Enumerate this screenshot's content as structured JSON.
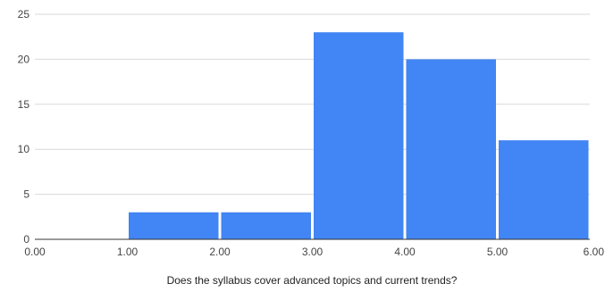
{
  "chart_data": {
    "type": "bar",
    "subtype": "histogram",
    "title": "",
    "xlabel": "Does the syllabus cover advanced topics and current trends?",
    "ylabel": "",
    "xlim": [
      0,
      6
    ],
    "ylim": [
      0,
      25
    ],
    "x_ticks": [
      "0.00",
      "1.00",
      "2.00",
      "3.00",
      "4.00",
      "5.00",
      "6.00"
    ],
    "y_ticks": [
      "0",
      "5",
      "10",
      "15",
      "20",
      "25"
    ],
    "bins": [
      {
        "start": 1,
        "end": 2,
        "value": 3
      },
      {
        "start": 2,
        "end": 3,
        "value": 3
      },
      {
        "start": 3,
        "end": 4,
        "value": 23
      },
      {
        "start": 4,
        "end": 5,
        "value": 20
      },
      {
        "start": 5,
        "end": 6,
        "value": 11
      }
    ],
    "bar_color": "#4285f4",
    "gridlines": true,
    "legend": "none"
  }
}
